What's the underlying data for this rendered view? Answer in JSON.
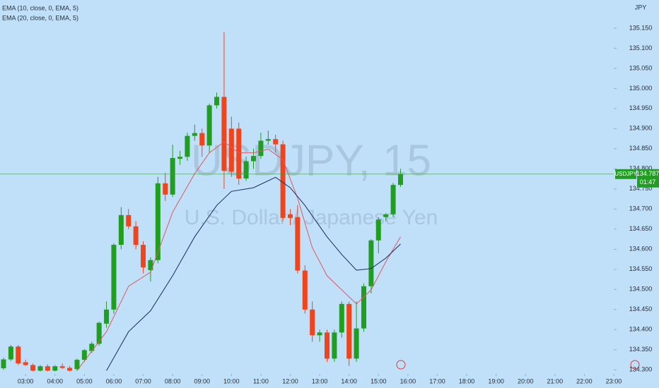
{
  "chart_data": {
    "type": "candlestick",
    "title": "USDJPY, 15",
    "subtitle": "U.S. Dollar / Japanese Yen",
    "currency": "JPY",
    "symbol": "USDJPY",
    "last_price": 134.787,
    "last_price_label": "134.787",
    "countdown": "01:47",
    "up_color": "#1f9e1f",
    "down_color": "#f0441c",
    "x": [
      2.25,
      2.5,
      2.75,
      3,
      3.25,
      3.5,
      3.75,
      4,
      4.25,
      4.5,
      4.75,
      5,
      5.25,
      5.5,
      5.75,
      6,
      6.25,
      6.5,
      6.75,
      7,
      7.25,
      7.5,
      7.75,
      8,
      8.25,
      8.5,
      8.75,
      9,
      9.25,
      9.5,
      9.75,
      10,
      10.25,
      10.5,
      10.75,
      11,
      11.25,
      11.5,
      11.75,
      12,
      12.25,
      12.5,
      12.75,
      13,
      13.25,
      13.5,
      13.75,
      14,
      14.25,
      14.5,
      14.75,
      15,
      15.25,
      15.5,
      15.75
    ],
    "open": [
      134.304,
      134.326,
      134.358,
      134.319,
      134.312,
      134.298,
      134.309,
      134.298,
      134.309,
      134.305,
      134.302,
      134.325,
      134.347,
      134.365,
      134.415,
      134.45,
      134.611,
      134.685,
      134.657,
      134.611,
      134.548,
      134.573,
      134.764,
      134.736,
      134.825,
      134.83,
      134.882,
      134.889,
      134.858,
      134.958,
      134.979,
      134.9,
      134.9,
      134.776,
      134.819,
      134.832,
      134.87,
      134.874,
      134.861,
      134.687,
      134.68,
      134.547,
      134.45,
      134.386,
      134.393,
      134.328,
      134.393,
      134.464,
      134.328,
      134.403,
      134.508,
      134.622,
      134.68,
      134.687,
      134.76
    ],
    "high": [
      134.33,
      134.362,
      134.362,
      134.325,
      134.316,
      134.312,
      134.314,
      134.312,
      134.316,
      134.31,
      134.328,
      134.352,
      134.37,
      134.42,
      134.47,
      134.615,
      134.705,
      134.7,
      134.67,
      134.62,
      134.58,
      134.78,
      134.79,
      134.86,
      134.845,
      134.89,
      134.91,
      134.9,
      134.962,
      134.99,
      135.14,
      134.93,
      134.915,
      134.83,
      134.85,
      134.89,
      134.895,
      134.885,
      134.87,
      134.7,
      134.71,
      134.56,
      134.47,
      134.4,
      134.4,
      134.4,
      134.47,
      134.47,
      134.47,
      134.515,
      134.625,
      134.68,
      134.69,
      134.765,
      134.8
    ],
    "low": [
      134.3,
      134.322,
      134.312,
      134.31,
      134.296,
      134.296,
      134.296,
      134.296,
      134.302,
      134.296,
      134.298,
      134.32,
      134.342,
      134.36,
      134.405,
      134.44,
      134.6,
      134.65,
      134.6,
      134.54,
      134.52,
      134.565,
      134.72,
      134.73,
      134.81,
      134.82,
      134.87,
      134.83,
      134.84,
      134.95,
      134.75,
      134.78,
      134.76,
      134.77,
      134.8,
      134.825,
      134.86,
      134.84,
      134.67,
      134.66,
      134.54,
      134.44,
      134.37,
      134.37,
      134.32,
      134.32,
      134.38,
      134.31,
      134.32,
      134.395,
      134.49,
      134.59,
      134.67,
      134.68,
      134.755
    ],
    "close": [
      134.326,
      134.358,
      134.316,
      134.312,
      134.298,
      134.309,
      134.298,
      134.309,
      134.305,
      134.298,
      134.325,
      134.349,
      134.365,
      134.417,
      134.45,
      134.611,
      134.685,
      134.657,
      134.611,
      134.555,
      134.573,
      134.764,
      134.736,
      134.827,
      134.83,
      134.882,
      134.889,
      134.858,
      134.958,
      134.979,
      134.795,
      134.793,
      134.776,
      134.819,
      134.832,
      134.87,
      134.874,
      134.861,
      134.678,
      134.678,
      134.547,
      134.45,
      134.386,
      134.393,
      134.328,
      134.393,
      134.464,
      134.328,
      134.403,
      134.508,
      134.622,
      134.674,
      134.687,
      134.76,
      134.787
    ],
    "series": [
      {
        "name": "EMA (10, close, 0, EMA, 5)",
        "color": "#e0585f",
        "x": [
          4.75,
          5.75,
          6.5,
          7.25,
          8,
          8.75,
          9.25,
          9.75,
          10.25,
          10.75,
          11.25,
          11.75,
          12.25,
          12.75,
          13.25,
          13.75,
          14.25,
          14.75,
          15.25,
          15.75
        ],
        "values": [
          134.298,
          134.395,
          134.508,
          134.543,
          134.692,
          134.788,
          134.84,
          134.867,
          134.84,
          134.84,
          134.849,
          134.823,
          134.727,
          134.604,
          134.534,
          134.499,
          134.464,
          134.499,
          134.569,
          134.631
        ]
      },
      {
        "name": "EMA (20, close, 0, EMA, 5)",
        "color": "#1b2b5e",
        "x": [
          5.75,
          6.5,
          7.25,
          8,
          8.75,
          9.5,
          10,
          10.75,
          11.5,
          12,
          12.5,
          13.25,
          13.75,
          14.25,
          14.75,
          15.25,
          15.75
        ],
        "values": [
          134.298,
          134.395,
          134.447,
          134.534,
          134.631,
          134.709,
          134.744,
          134.753,
          134.779,
          134.753,
          134.709,
          134.631,
          134.587,
          134.548,
          134.552,
          134.578,
          134.613
        ]
      }
    ],
    "xlim": [
      2.13,
      23.0
    ],
    "ylim": [
      134.29,
      135.22
    ],
    "xticks": [
      {
        "value": 3,
        "label": "03:00"
      },
      {
        "value": 4,
        "label": "04:00"
      },
      {
        "value": 5,
        "label": "05:00"
      },
      {
        "value": 6,
        "label": "06:00"
      },
      {
        "value": 7,
        "label": "07:00"
      },
      {
        "value": 8,
        "label": "08:00"
      },
      {
        "value": 9,
        "label": "09:00"
      },
      {
        "value": 10,
        "label": "10:00"
      },
      {
        "value": 11,
        "label": "11:00"
      },
      {
        "value": 12,
        "label": "12:00"
      },
      {
        "value": 13,
        "label": "13:00"
      },
      {
        "value": 14,
        "label": "14:00"
      },
      {
        "value": 15,
        "label": "15:00"
      },
      {
        "value": 16,
        "label": "16:00"
      },
      {
        "value": 17,
        "label": "17:00"
      },
      {
        "value": 18,
        "label": "18:00"
      },
      {
        "value": 19,
        "label": "19:00"
      },
      {
        "value": 20,
        "label": "20:00"
      },
      {
        "value": 21,
        "label": "21:00"
      },
      {
        "value": 22,
        "label": "22:00"
      },
      {
        "value": 23,
        "label": "23:00"
      }
    ],
    "yticks": [
      {
        "value": 134.3,
        "label": "134.300"
      },
      {
        "value": 134.35,
        "label": "134.350"
      },
      {
        "value": 134.4,
        "label": "134.400"
      },
      {
        "value": 134.45,
        "label": "134.450"
      },
      {
        "value": 134.5,
        "label": "134.500"
      },
      {
        "value": 134.55,
        "label": "134.550"
      },
      {
        "value": 134.6,
        "label": "134.600"
      },
      {
        "value": 134.65,
        "label": "134.650"
      },
      {
        "value": 134.7,
        "label": "134.700"
      },
      {
        "value": 134.75,
        "label": "134.750"
      },
      {
        "value": 134.8,
        "label": "134.800"
      },
      {
        "value": 134.85,
        "label": "134.850"
      },
      {
        "value": 134.9,
        "label": "134.900"
      },
      {
        "value": 134.95,
        "label": "134.950"
      },
      {
        "value": 135.0,
        "label": "135.000"
      },
      {
        "value": 135.05,
        "label": "135.050"
      },
      {
        "value": 135.1,
        "label": "135.100"
      },
      {
        "value": 135.15,
        "label": "135.150"
      }
    ]
  }
}
